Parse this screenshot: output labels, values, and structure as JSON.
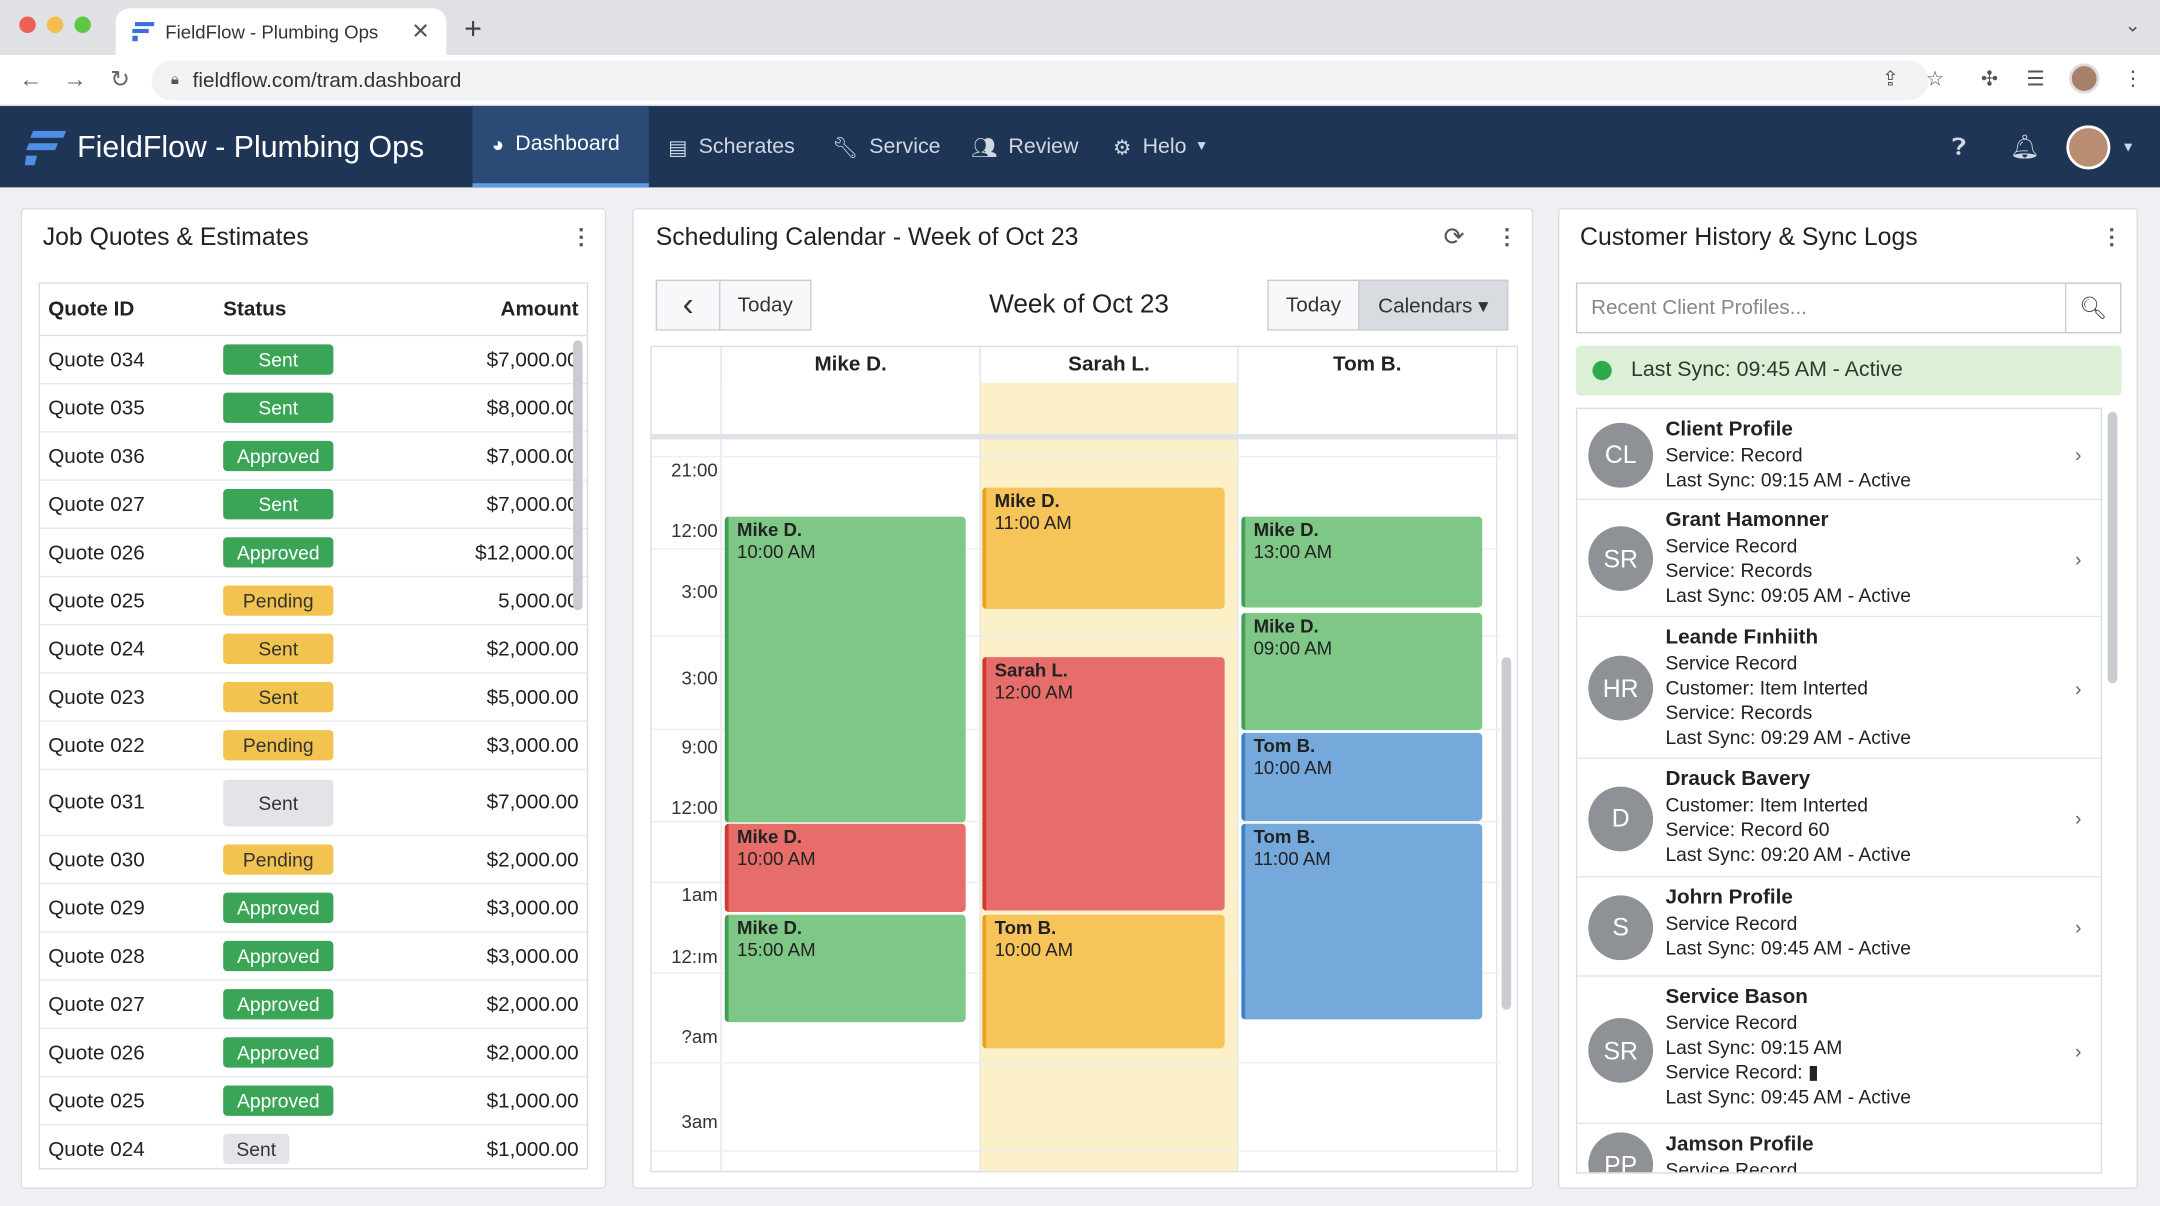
{
  "browser": {
    "tab_title": "FieldFlow - Plumbing Ops",
    "url": "fieldflow.com/tram.dashboard",
    "new_tab": "+",
    "close": "✕"
  },
  "app": {
    "brand": "FieldFlow - Plumbing Ops",
    "nav": [
      {
        "label": "Dashboard",
        "icon": "dashboard-icon"
      },
      {
        "label": "Scherates",
        "icon": "document-icon"
      },
      {
        "label": "Service",
        "icon": "wrench-icon"
      },
      {
        "label": "Review",
        "icon": "users-icon"
      },
      {
        "label": "Helo",
        "icon": "gear-icon"
      }
    ]
  },
  "quotes": {
    "title": "Job Quotes & Estimates",
    "headers": [
      "Quote ID",
      "Status",
      "Amount"
    ],
    "rows": [
      {
        "id": "Quote 034",
        "status": "Sent",
        "kind": "g",
        "amount": "$7,000.00"
      },
      {
        "id": "Quote 035",
        "status": "Sent",
        "kind": "g",
        "amount": "$8,000.00"
      },
      {
        "id": "Quote 036",
        "status": "Approved",
        "kind": "g",
        "amount": "$7,000.00"
      },
      {
        "id": "Quote 027",
        "status": "Sent",
        "kind": "g",
        "amount": "$7,000.00"
      },
      {
        "id": "Quote 026",
        "status": "Approved",
        "kind": "g",
        "amount": "$12,000.00"
      },
      {
        "id": "Quote 025",
        "status": "Pending",
        "kind": "y",
        "amount": "5,000.00"
      },
      {
        "id": "Quote 024",
        "status": "Sent",
        "kind": "y",
        "amount": "$2,000.00"
      },
      {
        "id": "Quote 023",
        "status": "Sent",
        "kind": "y",
        "amount": "$5,000.00"
      },
      {
        "id": "Quote 022",
        "status": "Pending",
        "kind": "y",
        "amount": "$3,000.00"
      },
      {
        "id": "Quote 031",
        "status": "Sent",
        "kind": "gr",
        "amount": "$7,000.00"
      },
      {
        "id": "Quote 030",
        "status": "Pending",
        "kind": "y",
        "amount": "$2,000.00"
      },
      {
        "id": "Quote 029",
        "status": "Approved",
        "kind": "g",
        "amount": "$3,000.00"
      },
      {
        "id": "Quote 028",
        "status": "Approved",
        "kind": "g",
        "amount": "$3,000.00"
      },
      {
        "id": "Quote 027",
        "status": "Approved",
        "kind": "g",
        "amount": "$2,000.00"
      },
      {
        "id": "Quote 026",
        "status": "Approved",
        "kind": "g",
        "amount": "$2,000.00"
      },
      {
        "id": "Quote 025",
        "status": "Approved",
        "kind": "g",
        "amount": "$1,000.00"
      },
      {
        "id": "Quote 024",
        "status": "Sent",
        "kind": "gr",
        "amount": "$1,000.00"
      }
    ]
  },
  "calendar": {
    "title": "Scheduling Calendar - Week of Oct 23",
    "week_label": "Week of Oct 23",
    "today": "Today",
    "today2": "Today",
    "calendars": "Calendars ▾",
    "prev": "‹",
    "columns": [
      "Mike D.",
      "Sarah L.",
      "Tom B."
    ],
    "times": [
      "21:00",
      "12:00",
      "3:00",
      "3:00",
      "9:00",
      "12:00",
      "1am",
      "12:ım",
      "?am",
      "3am"
    ],
    "events": [
      {
        "col": 0,
        "name": "Mike D.",
        "time": "10:00 AM",
        "color": "g"
      },
      {
        "col": 0,
        "name": "Mike D.",
        "time": "10:00 AM",
        "color": "r"
      },
      {
        "col": 0,
        "name": "Mike D.",
        "time": "15:00 AM",
        "color": "g"
      },
      {
        "col": 1,
        "name": "Mike D.",
        "time": "11:00 AM",
        "color": "o"
      },
      {
        "col": 1,
        "name": "Sarah L.",
        "time": "12:00 AM",
        "color": "r"
      },
      {
        "col": 1,
        "name": "Tom B.",
        "time": "10:00 AM",
        "color": "o"
      },
      {
        "col": 2,
        "name": "Mike D.",
        "time": "13:00 AM",
        "color": "g"
      },
      {
        "col": 2,
        "name": "Mike D.",
        "time": "09:00 AM",
        "color": "g"
      },
      {
        "col": 2,
        "name": "Tom B.",
        "time": "10:00 AM",
        "color": "b"
      },
      {
        "col": 2,
        "name": "Tom B.",
        "time": "11:00 AM",
        "color": "b"
      }
    ]
  },
  "history": {
    "title": "Customer History & Sync Logs",
    "search_placeholder": "Recent Client Profiles...",
    "sync_status": "Last Sync: 09:45 AM - Active",
    "clients": [
      {
        "initials": "CL",
        "name": "Client Profile",
        "lines": [
          "Service: Record",
          "Last Sync: 09:15 AM - Active"
        ]
      },
      {
        "initials": "SR",
        "name": "Grant Hamonner",
        "lines": [
          "Service Record",
          "Service: Records",
          "Last Sync: 09:05 AM - Active"
        ]
      },
      {
        "initials": "HR",
        "name": "Leande Fınhiith",
        "lines": [
          "Service Record",
          "Customer: Item Interted",
          "Service: Records",
          "Last Sync: 09:29 AM - Active"
        ]
      },
      {
        "initials": "D",
        "name": "Drauck Bavery",
        "lines": [
          "Customer: Item Interted",
          "Service: Record 60",
          "Last Sync: 09:20 AM - Active"
        ]
      },
      {
        "initials": "S",
        "name": "Johrn Profile",
        "lines": [
          "Service Record",
          "Last Sync: 09:45 AM - Active"
        ]
      },
      {
        "initials": "SR",
        "name": "Service Bason",
        "lines": [
          "Service Record",
          "Last Sync: 09:15 AM",
          "Service Record: ▮",
          "Last Sync: 09:45 AM - Active"
        ]
      },
      {
        "initials": "PP",
        "name": "Jamson Profile",
        "lines": [
          "Service Record"
        ]
      }
    ]
  },
  "colors": {
    "appbar": "#1e3556",
    "active_nav": "#2b4a75",
    "green": "#3ba557",
    "yellow": "#f3c34f",
    "event_green": "#7ec787",
    "event_red": "#e66d6a",
    "event_orange": "#f6c459",
    "event_blue": "#75a9dc"
  }
}
